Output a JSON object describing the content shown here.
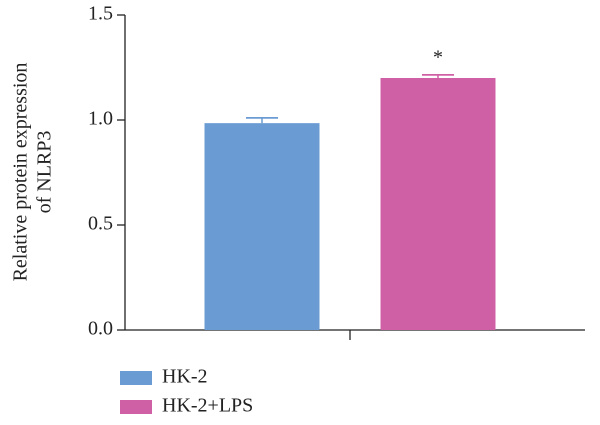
{
  "chart_data": {
    "type": "bar",
    "ylabel": [
      "Relative protein expression",
      "of NLRP3"
    ],
    "categories": [
      null
    ],
    "series": [
      {
        "name": "HK-2",
        "color": "#6a9bd3",
        "values": [
          0.985
        ],
        "errors": [
          0.025
        ]
      },
      {
        "name": "HK-2+LPS",
        "color": "#d060a5",
        "values": [
          1.2
        ],
        "errors": [
          0.015
        ],
        "annotation": "*"
      }
    ],
    "ylim": [
      0,
      1.5
    ],
    "yticks": [
      {
        "value": 0,
        "label": "0.0"
      },
      0.5,
      {
        "value": 1,
        "label": "1.0"
      },
      {
        "value": 1.5,
        "label": "1.5"
      }
    ],
    "legend": "bottom-left"
  }
}
